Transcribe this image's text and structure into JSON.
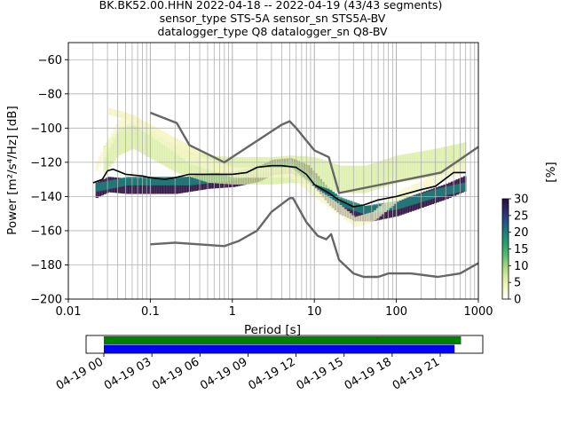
{
  "chart_data": {
    "type": "heatmap",
    "title_lines": [
      "BK.BK52.00.HHN   2022-04-18 -- 2022-04-19  (43/43 segments)",
      "sensor_type STS-5A sensor_sn STS5A-BV",
      "datalogger_type Q8 datalogger_sn Q8-BV"
    ],
    "xlabel": "Period [s]",
    "ylabel": "Power [m²/s⁴/Hz] [dB]",
    "x_scale": "log",
    "xlim": [
      0.01,
      1000
    ],
    "ylim": [
      -200,
      -50
    ],
    "x_ticks": [
      {
        "value": 0.01,
        "label": "0.01"
      },
      {
        "value": 0.1,
        "label": "0.1"
      },
      {
        "value": 1,
        "label": "1"
      },
      {
        "value": 10,
        "label": "10"
      },
      {
        "value": 100,
        "label": "100"
      },
      {
        "value": 1000,
        "label": "1000"
      }
    ],
    "y_ticks": [
      -60,
      -80,
      -100,
      -120,
      -140,
      -160,
      -180,
      -200
    ],
    "grid": true,
    "colorbar": {
      "label": "[%]",
      "range": [
        0,
        30
      ],
      "ticks": [
        "0",
        "5",
        "10",
        "15",
        "20",
        "25",
        "30"
      ],
      "colors": [
        "#ffffff",
        "#f5f7c8",
        "#d7ec9e",
        "#9fd680",
        "#53bc6e",
        "#27a06d",
        "#1f7f7a",
        "#244e86",
        "#2c2a6e",
        "#2a0c3d"
      ]
    },
    "noise_model_low": [
      [
        0.1,
        -168
      ],
      [
        0.2,
        -167
      ],
      [
        0.8,
        -169
      ],
      [
        1.2,
        -166
      ],
      [
        2.0,
        -160
      ],
      [
        3.0,
        -149
      ],
      [
        5.0,
        -141
      ],
      [
        5.5,
        -141
      ],
      [
        8.0,
        -155
      ],
      [
        11,
        -163
      ],
      [
        14,
        -165
      ],
      [
        16,
        -162
      ],
      [
        20,
        -177
      ],
      [
        30,
        -185
      ],
      [
        40,
        -187
      ],
      [
        60,
        -187
      ],
      [
        80,
        -185
      ],
      [
        150,
        -185
      ],
      [
        320,
        -187
      ],
      [
        600,
        -185
      ],
      [
        1000,
        -179
      ]
    ],
    "noise_model_high": [
      [
        0.1,
        -91
      ],
      [
        0.21,
        -97
      ],
      [
        0.3,
        -110
      ],
      [
        0.8,
        -120
      ],
      [
        4.0,
        -98
      ],
      [
        5.0,
        -96
      ],
      [
        6.0,
        -100
      ],
      [
        10,
        -113
      ],
      [
        15,
        -117
      ],
      [
        20,
        -138
      ],
      [
        350,
        -126
      ],
      [
        1000,
        -111
      ]
    ],
    "mean_psd": [
      [
        0.02,
        -132
      ],
      [
        0.026,
        -130
      ],
      [
        0.03,
        -125
      ],
      [
        0.035,
        -124
      ],
      [
        0.05,
        -127
      ],
      [
        0.08,
        -128
      ],
      [
        0.1,
        -129
      ],
      [
        0.15,
        -130
      ],
      [
        0.2,
        -129
      ],
      [
        0.3,
        -127
      ],
      [
        0.5,
        -127
      ],
      [
        1.0,
        -127
      ],
      [
        1.5,
        -126
      ],
      [
        2.0,
        -123
      ],
      [
        3.0,
        -122
      ],
      [
        4.0,
        -122
      ],
      [
        6.0,
        -123
      ],
      [
        8.0,
        -127
      ],
      [
        10,
        -133
      ],
      [
        15,
        -138
      ],
      [
        20,
        -142
      ],
      [
        30,
        -146
      ],
      [
        40,
        -145
      ],
      [
        60,
        -142
      ],
      [
        100,
        -140
      ],
      [
        200,
        -136
      ],
      [
        300,
        -134
      ],
      [
        500,
        -126
      ],
      [
        700,
        -126
      ]
    ],
    "density_bands": [
      {
        "center": [
          [
            0.02,
            -137
          ],
          [
            0.03,
            -133
          ],
          [
            0.05,
            -134
          ],
          [
            0.1,
            -134
          ],
          [
            0.2,
            -134
          ],
          [
            0.5,
            -131
          ],
          [
            1.0,
            -130
          ],
          [
            2.0,
            -127
          ],
          [
            3.0,
            -123
          ],
          [
            5.0,
            -122
          ],
          [
            8.0,
            -126
          ],
          [
            10,
            -131
          ],
          [
            15,
            -141
          ],
          [
            20,
            -146
          ],
          [
            30,
            -150
          ],
          [
            50,
            -150
          ],
          [
            100,
            -147
          ],
          [
            200,
            -142
          ],
          [
            400,
            -137
          ],
          [
            700,
            -132
          ]
        ],
        "width": 9,
        "level": 9
      },
      {
        "center": [
          [
            0.02,
            -135
          ],
          [
            0.05,
            -131
          ],
          [
            0.1,
            -131
          ],
          [
            0.3,
            -131
          ],
          [
            1.0,
            -128
          ],
          [
            3.0,
            -123
          ],
          [
            5.0,
            -122
          ],
          [
            10,
            -132
          ],
          [
            20,
            -143
          ],
          [
            40,
            -148
          ],
          [
            100,
            -145
          ],
          [
            300,
            -138
          ],
          [
            700,
            -134
          ]
        ],
        "width": 5,
        "level": 6
      },
      {
        "center": [
          [
            0.025,
            -120
          ],
          [
            0.04,
            -108
          ],
          [
            0.06,
            -104
          ],
          [
            0.1,
            -110
          ],
          [
            0.2,
            -118
          ],
          [
            0.5,
            -124
          ],
          [
            1.0,
            -125
          ],
          [
            3.0,
            -125
          ],
          [
            5.0,
            -124
          ],
          [
            10,
            -125
          ],
          [
            20,
            -130
          ],
          [
            40,
            -130
          ],
          [
            100,
            -124
          ],
          [
            300,
            -120
          ],
          [
            700,
            -116
          ]
        ],
        "width": 16,
        "level": 2
      },
      {
        "center": [
          [
            0.02,
            -125
          ],
          [
            0.04,
            -98
          ],
          [
            0.06,
            -95
          ],
          [
            0.1,
            -102
          ],
          [
            0.3,
            -118
          ],
          [
            1.0,
            -126
          ],
          [
            5.0,
            -126
          ],
          [
            10,
            -138
          ],
          [
            20,
            -148
          ],
          [
            30,
            -155
          ],
          [
            50,
            -152
          ],
          [
            100,
            -140
          ],
          [
            300,
            -130
          ],
          [
            700,
            -122
          ]
        ],
        "width": 6,
        "level": 1
      },
      {
        "center": [
          [
            0.03,
            -90
          ],
          [
            0.05,
            -93
          ],
          [
            0.1,
            -100
          ],
          [
            0.2,
            -108
          ],
          [
            0.4,
            -115
          ]
        ],
        "width": 4,
        "level": 1
      }
    ],
    "availability": {
      "x_ticks": [
        "04-19 00",
        "04-19 03",
        "04-19 06",
        "04-19 09",
        "04-19 12",
        "04-19 15",
        "04-19 18",
        "04-19 21"
      ],
      "rows": [
        {
          "color": "#008000",
          "start_hour": 0,
          "end_hour": 22.3
        },
        {
          "color": "#0000ff",
          "start_hour": 0,
          "end_hour": 21.9
        }
      ],
      "marker_hour": 17.1
    }
  }
}
